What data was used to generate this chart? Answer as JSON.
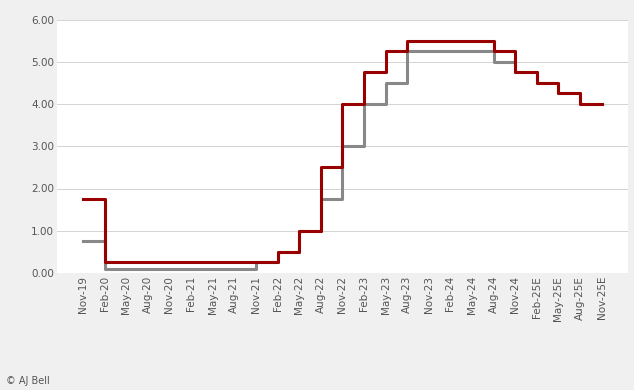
{
  "title": "",
  "background_color": "#f0f0f0",
  "plot_bg_color": "#ffffff",
  "x_labels": [
    "Nov-19",
    "Feb-20",
    "May-20",
    "Aug-20",
    "Nov-20",
    "Feb-21",
    "May-21",
    "Aug-21",
    "Nov-21",
    "Feb-22",
    "May-22",
    "Aug-22",
    "Nov-22",
    "Feb-23",
    "May-23",
    "Aug-23",
    "Nov-23",
    "Feb-24",
    "May-24",
    "Aug-24",
    "Nov-24",
    "Feb-25E",
    "May-25E",
    "Aug-25E",
    "Nov-25E"
  ],
  "boe_values": [
    0.75,
    0.1,
    0.1,
    0.1,
    0.1,
    0.1,
    0.1,
    0.1,
    0.25,
    0.5,
    1.0,
    1.75,
    3.0,
    4.0,
    4.5,
    5.25,
    5.25,
    5.25,
    5.25,
    5.0,
    4.75,
    4.5,
    4.25,
    4.0,
    4.0
  ],
  "fed_values": [
    1.75,
    0.25,
    0.25,
    0.25,
    0.25,
    0.25,
    0.25,
    0.25,
    0.25,
    0.5,
    1.0,
    2.5,
    4.0,
    4.75,
    5.25,
    5.5,
    5.5,
    5.5,
    5.5,
    5.25,
    4.75,
    4.5,
    4.25,
    4.0,
    4.0
  ],
  "boe_color": "#888888",
  "fed_color": "#990000",
  "ylim_min": 0,
  "ylim_max": 6.0,
  "yticks": [
    0.0,
    1.0,
    2.0,
    3.0,
    4.0,
    5.0,
    6.0
  ],
  "ytick_labels": [
    "0.00",
    "1.00",
    "2.00",
    "3.00",
    "4.00",
    "5.00",
    "6.00"
  ],
  "line_width": 2.2,
  "watermark": "© AJ Bell",
  "legend_fontsize": 8.5,
  "tick_fontsize": 7.5
}
